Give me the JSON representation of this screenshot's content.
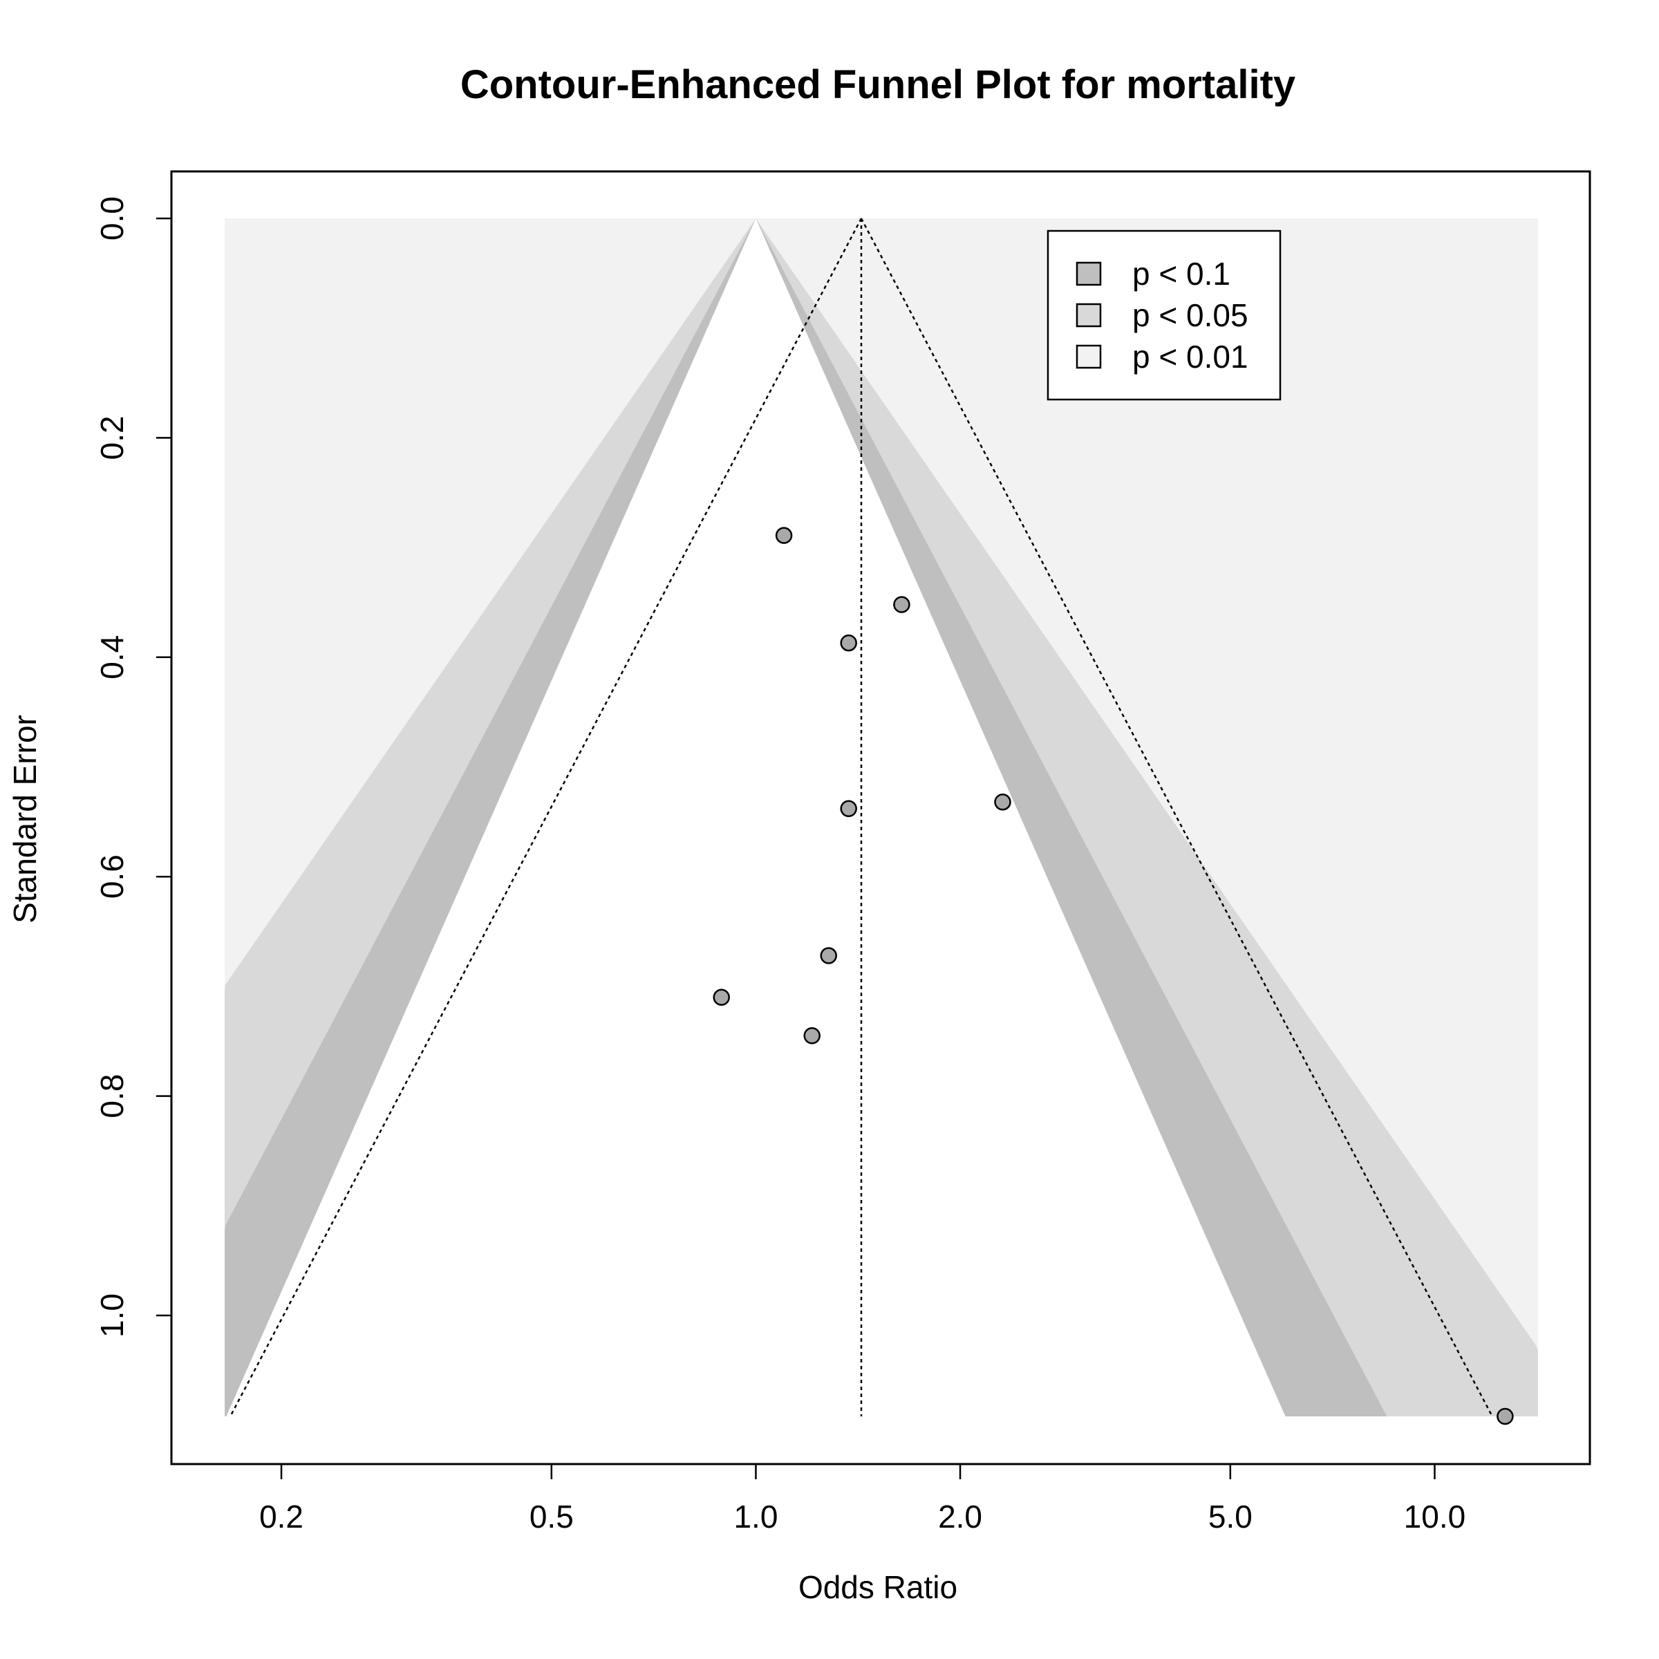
{
  "chart_data": {
    "type": "scatter",
    "title": "Contour-Enhanced Funnel Plot for mortality",
    "xlabel": "Odds Ratio",
    "ylabel": "Standard Error",
    "x_scale": "log",
    "y_reversed": true,
    "xlim": [
      0.165,
      14.2
    ],
    "ylim": [
      0,
      1.092
    ],
    "x_ticks": [
      0.2,
      0.5,
      1.0,
      2.0,
      5.0,
      10.0
    ],
    "x_tick_labels": [
      "0.2",
      "0.5",
      "1.0",
      "2.0",
      "5.0",
      "10.0"
    ],
    "y_ticks": [
      0.0,
      0.2,
      0.4,
      0.6,
      0.8,
      1.0
    ],
    "y_tick_labels": [
      "0.0",
      "0.2",
      "0.4",
      "0.6",
      "0.8",
      "1.0"
    ],
    "pooled_estimate": 1.43,
    "contour_center": 1.0,
    "contours": [
      {
        "label": "p < 0.1",
        "z": 1.645,
        "color": "#bfbfbf"
      },
      {
        "label": "p < 0.05",
        "z": 1.96,
        "color": "#d9d9d9"
      },
      {
        "label": "p < 0.01",
        "z": 2.576,
        "color": "#f2f2f2"
      }
    ],
    "points": [
      {
        "or": 1.1,
        "se": 0.289
      },
      {
        "or": 1.64,
        "se": 0.352
      },
      {
        "or": 1.37,
        "se": 0.387
      },
      {
        "or": 2.31,
        "se": 0.532
      },
      {
        "or": 1.37,
        "se": 0.538
      },
      {
        "or": 1.28,
        "se": 0.672
      },
      {
        "or": 0.89,
        "se": 0.71
      },
      {
        "or": 1.21,
        "se": 0.745
      },
      {
        "or": 12.7,
        "se": 1.092
      }
    ],
    "legend": {
      "position": "top-right",
      "entries": [
        "p < 0.1",
        "p < 0.05",
        "p < 0.01"
      ]
    },
    "grid": false,
    "colors": {
      "point_fill": "#a9a9a9",
      "point_stroke": "#000000",
      "frame": "#000000"
    }
  }
}
